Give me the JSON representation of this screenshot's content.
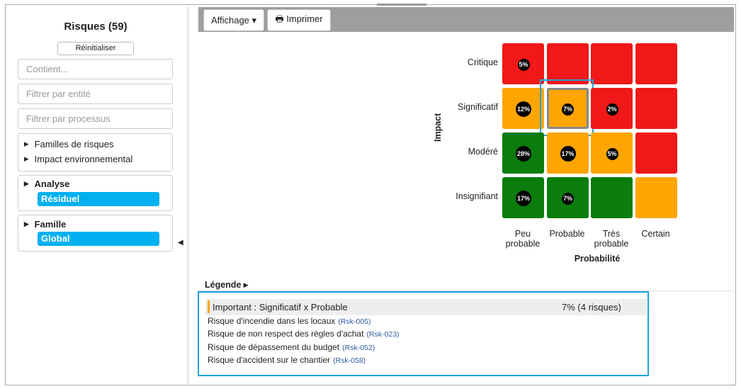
{
  "sidebar": {
    "title": "Risques (59)",
    "reset": "Réinitialiser",
    "filters": [
      "Contient...",
      "Filtrer par entité",
      "Filtrer par processus"
    ],
    "groups": [
      "Familles de risques",
      "Impact environnemental"
    ],
    "analysis": {
      "label": "Analyse",
      "value": "Résiduel"
    },
    "family": {
      "label": "Famille",
      "value": "Global"
    }
  },
  "toolbar": {
    "view": "Affichage",
    "print": "Imprimer"
  },
  "matrix": {
    "y_label": "Impact",
    "x_label": "Probabilité",
    "rows": [
      "Critique",
      "Significatif",
      "Modéré",
      "Insignifiant"
    ],
    "columns": [
      "Peu probable",
      "Probable",
      "Très probable",
      "Certain"
    ],
    "cells": [
      [
        {
          "color": "#f01818",
          "label": "5%"
        },
        {
          "color": "#f01818"
        },
        {
          "color": "#f01818"
        },
        {
          "color": "#f01818"
        }
      ],
      [
        {
          "color": "#ffa500",
          "label": "12%"
        },
        {
          "color": "#ffa500",
          "label": "7%",
          "selected": true
        },
        {
          "color": "#f01818",
          "label": "2%"
        },
        {
          "color": "#f01818"
        }
      ],
      [
        {
          "color": "#0a7d0e",
          "label": "28%"
        },
        {
          "color": "#ffa500",
          "label": "17%"
        },
        {
          "color": "#ffa500",
          "label": "5%"
        },
        {
          "color": "#f01818"
        }
      ],
      [
        {
          "color": "#0a7d0e",
          "label": "17%"
        },
        {
          "color": "#0a7d0e",
          "label": "7%"
        },
        {
          "color": "#0a7d0e"
        },
        {
          "color": "#ffa500"
        }
      ]
    ]
  },
  "legend": {
    "title": "Légende",
    "selected": {
      "label": "Important : Significatif x Probable",
      "value": "7% (4 risques)"
    },
    "risks": [
      {
        "name": "Risque d'incendie dans les locaux",
        "id": "(Rsk-005)"
      },
      {
        "name": "Risque de non respect des règles d'achat",
        "id": "(Rsk-023)"
      },
      {
        "name": "Risque de dépassement du budget",
        "id": "(Rsk-052)"
      },
      {
        "name": "Risque d'accident sur le chantier",
        "id": "(Rsk-058)"
      }
    ]
  }
}
